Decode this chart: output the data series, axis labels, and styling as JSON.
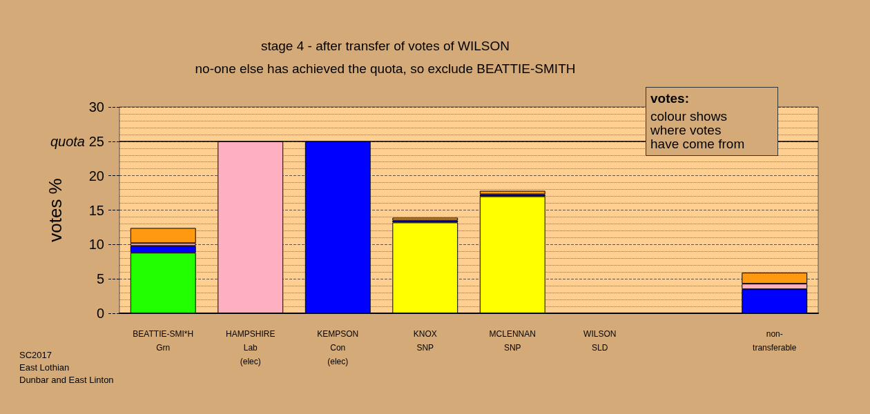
{
  "chart_data": {
    "type": "bar",
    "title": "stage 4 - after transfer of votes of WILSON",
    "subtitle": "no-one else has achieved the quota, so exclude BEATTIE-SMITH",
    "ylabel": "votes %",
    "categories": [
      "BEATTIE-SMI*H\nGrn",
      "HAMPSHIRE\nLab\n(elec)",
      "KEMPSON\nCon\n(elec)",
      "KNOX\nSNP",
      "MCLENNAN\nSNP",
      "WILSON\nSLD",
      null,
      "non-\ntransferable"
    ],
    "stacked": true,
    "series": [
      {
        "color": "#22ff00",
        "values": [
          8.8,
          null,
          null,
          null,
          null,
          null,
          null,
          null
        ]
      },
      {
        "color": "#ffff00",
        "values": [
          null,
          null,
          null,
          13.2,
          17.0,
          null,
          null,
          null
        ]
      },
      {
        "color": "#0000ff",
        "values": [
          1.0,
          null,
          25,
          0.3,
          0.3,
          null,
          null,
          3.5
        ]
      },
      {
        "color": "#ffb0c0",
        "values": [
          0.4,
          25,
          null,
          null,
          null,
          null,
          null,
          0.8
        ]
      },
      {
        "color": "#ff9a10",
        "values": [
          2.2,
          null,
          null,
          0.4,
          0.5,
          null,
          null,
          1.6
        ]
      }
    ],
    "ylim": [
      0,
      30
    ],
    "yticks": [
      0,
      5,
      10,
      15,
      20,
      25,
      30
    ],
    "grid": "y",
    "ref_lines": [
      {
        "axis": "y",
        "value": 25,
        "label": "quota",
        "color": "#000000",
        "line_style": "solid"
      }
    ],
    "annotations": [
      "SC2017",
      "East Lothian",
      "Dunbar and East Linton",
      "votes:",
      "colour shows\nwhere votes\nhave come from"
    ]
  }
}
